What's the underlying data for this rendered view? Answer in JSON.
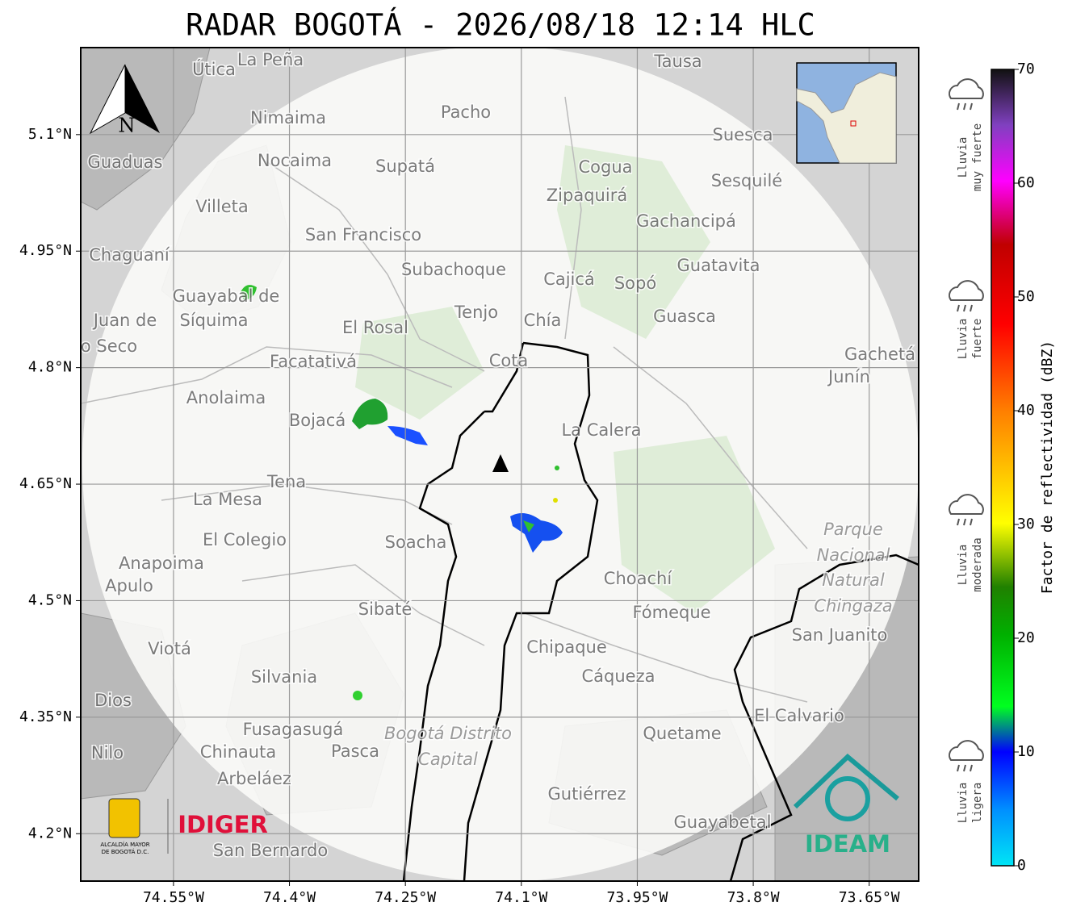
{
  "map": {
    "title": "RADAR BOGOTÁ - 2026/08/18 12:14 HLC",
    "xlim": [
      -74.67,
      -73.586
    ],
    "ylim": [
      4.139,
      5.212
    ],
    "xticks": [
      {
        "value": -74.55,
        "label": "74.55°W"
      },
      {
        "value": -74.4,
        "label": "74.4°W"
      },
      {
        "value": -74.25,
        "label": "74.25°W"
      },
      {
        "value": -74.1,
        "label": "74.1°W"
      },
      {
        "value": -73.95,
        "label": "73.95°W"
      },
      {
        "value": -73.8,
        "label": "73.8°W"
      },
      {
        "value": -73.65,
        "label": "73.65°W"
      }
    ],
    "yticks": [
      {
        "value": 5.1,
        "label": "5.1°N"
      },
      {
        "value": 4.95,
        "label": "4.95°N"
      },
      {
        "value": 4.8,
        "label": "4.8°N"
      },
      {
        "value": 4.65,
        "label": "4.65°N"
      },
      {
        "value": 4.5,
        "label": "4.5°N"
      },
      {
        "value": 4.35,
        "label": "4.35°N"
      },
      {
        "value": 4.2,
        "label": "4.2°N"
      }
    ],
    "grid": true,
    "places": [
      "La Peña",
      "Útica",
      "Tausa",
      "Pacho",
      "Nimaima",
      "Guaduas",
      "Nocaima",
      "Supatá",
      "Cogua",
      "Suesca",
      "Sesquilé",
      "Zipaquirá",
      "Villeta",
      "Gachancipá",
      "San Francisco",
      "Chaguaní",
      "Guatavita",
      "Subachoque",
      "Cajicá",
      "Sopó",
      "Guayabal de",
      "Síquima",
      "Juan de",
      "o Seco",
      "Tenjo",
      "Guasca",
      "El Rosal",
      "Chía",
      "Facatativá",
      "Cota",
      "Gachetá",
      "Junín",
      "Anolaima",
      "La Calera",
      "Bojacá",
      "Tena",
      "La Mesa",
      "Parque",
      "Nacional",
      "Natural",
      "Chingaza",
      "El Colegio",
      "Soacha",
      "Anapoima",
      "Apulo",
      "Choachí",
      "Sibaté",
      "Fómeque",
      "San Juanito",
      "Viotá",
      "Chipaque",
      "Silvania",
      "Cáqueza",
      "Dios",
      "El Calvario",
      "Fusagasugá",
      "Bogotá Distrito",
      "Capital",
      "Quetame",
      "Nilo",
      "Chinauta",
      "Pasca",
      "Arbeláez",
      "Gutiérrez",
      "Guayabetal",
      "San Bernardo"
    ],
    "compass": "N",
    "logos": {
      "alcaldia": [
        "ALCALDÍA MAYOR",
        "DE BOGOTÁ D.C."
      ],
      "idiger": "IDIGER",
      "ideam": "IDEAM"
    }
  },
  "colorbar": {
    "label": "Factor de reflectividad (dBZ)",
    "lim": [
      0,
      70
    ],
    "ticks": [
      0,
      10,
      20,
      30,
      40,
      50,
      60,
      70
    ],
    "categories": [
      [
        "Lluvia",
        "muy fuerte"
      ],
      [
        "Lluvia",
        "fuerte"
      ],
      [
        "Lluvia",
        "moderada"
      ],
      [
        "Lluvia",
        "ligera"
      ]
    ]
  }
}
